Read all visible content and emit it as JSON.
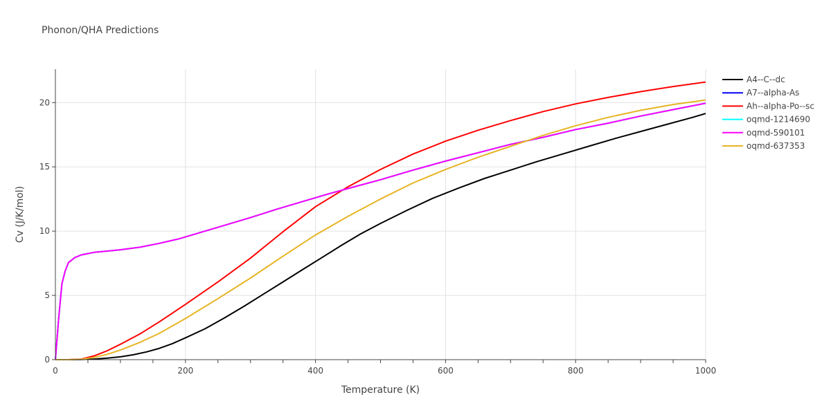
{
  "chart_data": {
    "type": "line",
    "title": "Phonon/QHA Predictions",
    "xlabel": "Temperature (K)",
    "ylabel": "Cv (J/K/mol)",
    "xlim": [
      0,
      1000
    ],
    "ylim": [
      0,
      22.6
    ],
    "xticks": [
      0,
      200,
      400,
      600,
      800,
      1000
    ],
    "yticks": [
      0,
      5,
      10,
      15,
      20
    ],
    "grid": true,
    "legend_position": "right",
    "series": [
      {
        "name": "A4--C--dc",
        "color": "#000000",
        "x": [
          0,
          20,
          40,
          60,
          80,
          100,
          120,
          140,
          160,
          180,
          200,
          230,
          260,
          290,
          320,
          350,
          380,
          410,
          440,
          470,
          500,
          540,
          580,
          620,
          660,
          700,
          740,
          780,
          820,
          860,
          900,
          940,
          980,
          1000
        ],
        "y": [
          0,
          0,
          0.01,
          0.05,
          0.12,
          0.22,
          0.38,
          0.6,
          0.88,
          1.25,
          1.7,
          2.4,
          3.25,
          4.15,
          5.1,
          6.05,
          7.0,
          7.95,
          8.9,
          9.8,
          10.6,
          11.6,
          12.55,
          13.35,
          14.1,
          14.75,
          15.4,
          16.0,
          16.6,
          17.2,
          17.75,
          18.3,
          18.85,
          19.15
        ]
      },
      {
        "name": "A7--alpha-As",
        "color": "#0000ff",
        "x": [
          0,
          5,
          10,
          15,
          20,
          30,
          40,
          60,
          80,
          100,
          130,
          160,
          190,
          220,
          260,
          300,
          340,
          380,
          420,
          460,
          500,
          550,
          600,
          650,
          700,
          750,
          800,
          850,
          900,
          950,
          1000
        ],
        "y": [
          0,
          3.2,
          5.9,
          6.9,
          7.55,
          7.95,
          8.15,
          8.35,
          8.45,
          8.55,
          8.75,
          9.05,
          9.4,
          9.85,
          10.45,
          11.05,
          11.7,
          12.3,
          12.9,
          13.45,
          14.0,
          14.75,
          15.45,
          16.1,
          16.75,
          17.3,
          17.9,
          18.4,
          18.95,
          19.45,
          19.95
        ]
      },
      {
        "name": "Ah--alpha-Po--sc",
        "color": "#ff0000",
        "x": [
          0,
          20,
          40,
          60,
          80,
          100,
          130,
          160,
          200,
          250,
          300,
          350,
          400,
          450,
          500,
          550,
          600,
          650,
          700,
          750,
          800,
          850,
          900,
          950,
          1000
        ],
        "y": [
          0,
          0,
          0.05,
          0.3,
          0.7,
          1.2,
          2.0,
          2.95,
          4.3,
          6.05,
          7.9,
          9.95,
          11.9,
          13.45,
          14.8,
          16.0,
          17.0,
          17.85,
          18.6,
          19.3,
          19.9,
          20.4,
          20.85,
          21.25,
          21.6
        ]
      },
      {
        "name": "oqmd-1214690",
        "color": "#00ffff",
        "x": [
          0,
          5,
          10,
          15,
          20,
          30,
          40,
          60,
          80,
          100,
          130,
          160,
          190,
          220,
          260,
          300,
          340,
          380,
          420,
          460,
          500,
          550,
          600,
          650,
          700,
          750,
          800,
          850,
          900,
          950,
          1000
        ],
        "y": [
          0,
          3.2,
          5.9,
          6.9,
          7.55,
          7.95,
          8.15,
          8.35,
          8.45,
          8.55,
          8.75,
          9.05,
          9.4,
          9.85,
          10.45,
          11.05,
          11.7,
          12.3,
          12.9,
          13.45,
          14.0,
          14.75,
          15.45,
          16.1,
          16.75,
          17.3,
          17.9,
          18.4,
          18.95,
          19.45,
          19.95
        ]
      },
      {
        "name": "oqmd-590101",
        "color": "#ff00ff",
        "x": [
          0,
          5,
          10,
          15,
          20,
          30,
          40,
          60,
          80,
          100,
          130,
          160,
          190,
          220,
          260,
          300,
          340,
          380,
          420,
          460,
          500,
          550,
          600,
          650,
          700,
          750,
          800,
          850,
          900,
          950,
          1000
        ],
        "y": [
          0,
          3.2,
          5.9,
          6.9,
          7.55,
          7.95,
          8.15,
          8.35,
          8.45,
          8.55,
          8.75,
          9.05,
          9.4,
          9.85,
          10.45,
          11.05,
          11.7,
          12.3,
          12.9,
          13.45,
          14.0,
          14.75,
          15.45,
          16.1,
          16.75,
          17.3,
          17.9,
          18.4,
          18.95,
          19.45,
          19.95
        ]
      },
      {
        "name": "oqmd-637353",
        "color": "#e6b422",
        "x": [
          0,
          20,
          40,
          60,
          80,
          100,
          130,
          160,
          200,
          250,
          300,
          350,
          400,
          450,
          500,
          550,
          600,
          650,
          700,
          750,
          800,
          850,
          900,
          950,
          1000
        ],
        "y": [
          0,
          0,
          0.03,
          0.18,
          0.42,
          0.75,
          1.35,
          2.05,
          3.2,
          4.75,
          6.35,
          8.05,
          9.7,
          11.15,
          12.5,
          13.75,
          14.8,
          15.75,
          16.6,
          17.45,
          18.2,
          18.85,
          19.4,
          19.85,
          20.2
        ]
      }
    ]
  }
}
